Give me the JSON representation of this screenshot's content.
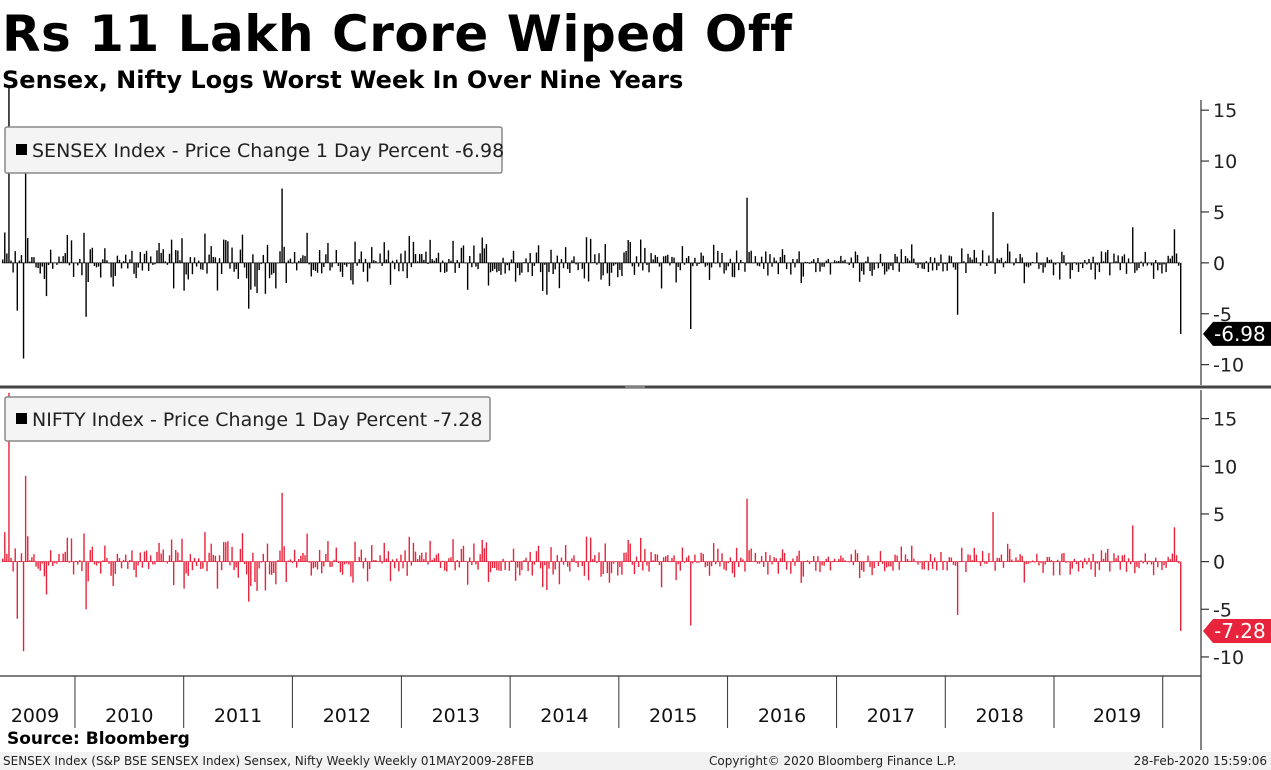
{
  "title": "Rs 11 Lakh Crore Wiped Off",
  "subtitle": "Sensex, Nifty Logs Worst Week In Over Nine Years",
  "source": "Source: Bloomberg",
  "footer": {
    "left": "SENSEX Index (S&P BSE SENSEX Index) Sensex, Nifty Weekly  Weekly 01MAY2009-28FEB",
    "copyright": "Copyright© 2020 Bloomberg Finance L.P.",
    "timestamp": "28-Feb-2020 15:59:06"
  },
  "colors": {
    "sensex": "#000000",
    "nifty": "#e8243c",
    "background": "#ffffff",
    "divider": "#444444"
  },
  "chart_data": [
    {
      "type": "bar",
      "legend": "SENSEX Index - Price Change 1 Day Percent -6.98",
      "last_value_label": "-6.98",
      "ylim": [
        -12,
        16
      ],
      "yticks": [
        15,
        10,
        5,
        0,
        -5,
        -10
      ],
      "x_range": [
        "2009-05-01",
        "2020-02-28"
      ],
      "x_tick_labels": [
        "2009",
        "2010",
        "2011",
        "2012",
        "2013",
        "2014",
        "2015",
        "2016",
        "2017",
        "2018",
        "2019"
      ],
      "highlights": [
        {
          "date": "2009-05-22",
          "value": 17.3
        },
        {
          "date": "2009-06-19",
          "value": -4.7
        },
        {
          "date": "2009-07-10",
          "value": -9.4
        },
        {
          "date": "2009-07-17",
          "value": 9.2
        },
        {
          "date": "2010-02-05",
          "value": -5.3
        },
        {
          "date": "2011-08-05",
          "value": -4.5
        },
        {
          "date": "2011-11-25",
          "value": 7.3
        },
        {
          "date": "2015-08-28",
          "value": -6.5
        },
        {
          "date": "2016-03-04",
          "value": 6.4
        },
        {
          "date": "2018-02-09",
          "value": -5.1
        },
        {
          "date": "2018-06-08",
          "value": 5.0
        },
        {
          "date": "2019-09-20",
          "value": 3.5
        },
        {
          "date": "2020-02-07",
          "value": 3.3
        },
        {
          "date": "2020-02-28",
          "value": -6.98
        }
      ]
    },
    {
      "type": "bar",
      "legend": "NIFTY Index - Price Change 1 Day Percent -7.28",
      "last_value_label": "-7.28",
      "ylim": [
        -12,
        18
      ],
      "yticks": [
        15,
        10,
        5,
        0,
        -5,
        -10
      ],
      "x_range": [
        "2009-05-01",
        "2020-02-28"
      ],
      "x_tick_labels": [
        "2009",
        "2010",
        "2011",
        "2012",
        "2013",
        "2014",
        "2015",
        "2016",
        "2017",
        "2018",
        "2019"
      ],
      "highlights": [
        {
          "date": "2009-05-22",
          "value": 17.7
        },
        {
          "date": "2009-06-19",
          "value": -6.0
        },
        {
          "date": "2009-07-10",
          "value": -9.4
        },
        {
          "date": "2009-07-17",
          "value": 9.0
        },
        {
          "date": "2010-02-05",
          "value": -5.0
        },
        {
          "date": "2011-08-05",
          "value": -4.2
        },
        {
          "date": "2011-11-25",
          "value": 7.2
        },
        {
          "date": "2015-08-28",
          "value": -6.7
        },
        {
          "date": "2016-03-04",
          "value": 6.6
        },
        {
          "date": "2018-02-09",
          "value": -5.6
        },
        {
          "date": "2018-06-08",
          "value": 5.2
        },
        {
          "date": "2019-09-20",
          "value": 3.8
        },
        {
          "date": "2020-02-07",
          "value": 3.6
        },
        {
          "date": "2020-02-28",
          "value": -7.28
        }
      ]
    }
  ]
}
